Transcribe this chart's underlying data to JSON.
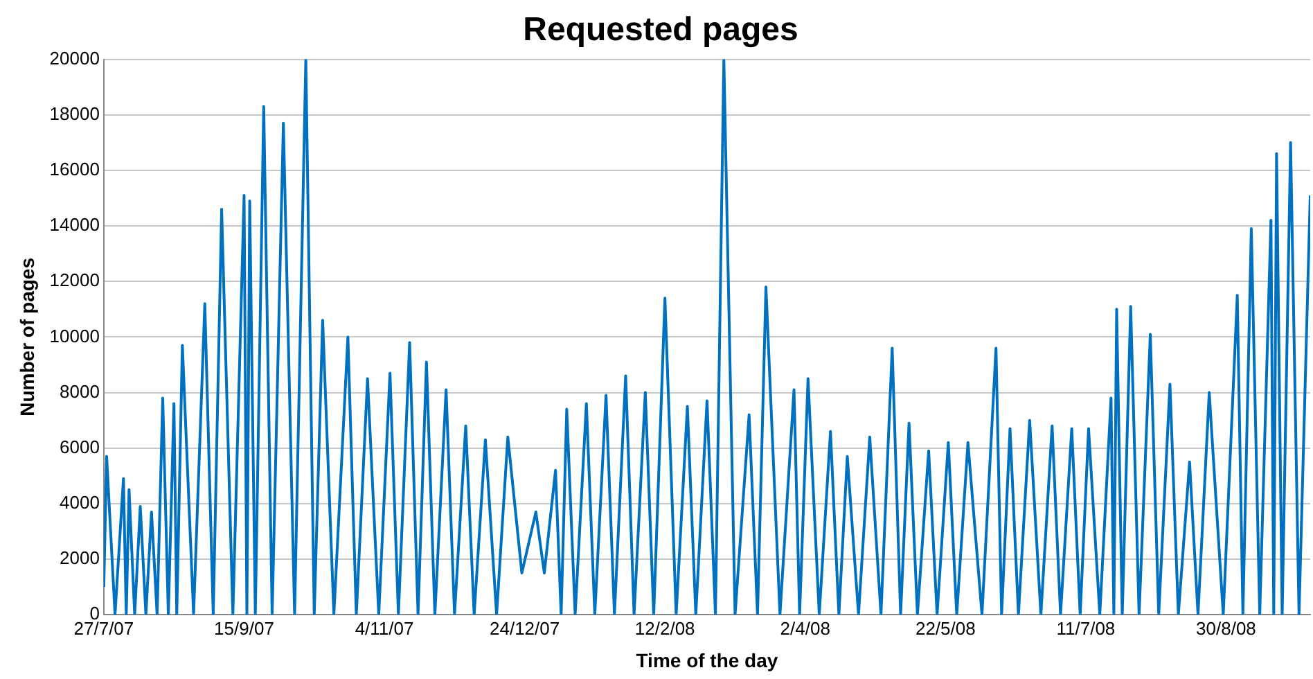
{
  "chart_data": {
    "type": "line",
    "title": "Requested pages",
    "xlabel": "Time of the day",
    "ylabel": "Number of pages",
    "color": "#0070c0",
    "marker": "none",
    "grid": "y",
    "ylim": [
      0,
      20000
    ],
    "yticks": [
      0,
      2000,
      4000,
      6000,
      8000,
      10000,
      12000,
      14000,
      16000,
      18000,
      20000
    ],
    "xlim": [
      "2007-07-27",
      "2008-09-29"
    ],
    "xticks": [
      {
        "value": "2007-07-27",
        "label": "27/7/07"
      },
      {
        "value": "2007-09-15",
        "label": "15/9/07"
      },
      {
        "value": "2007-11-04",
        "label": "4/11/07"
      },
      {
        "value": "2007-12-24",
        "label": "24/12/07"
      },
      {
        "value": "2008-02-12",
        "label": "12/2/08"
      },
      {
        "value": "2008-04-02",
        "label": "2/4/08"
      },
      {
        "value": "2008-05-22",
        "label": "22/5/08"
      },
      {
        "value": "2008-07-11",
        "label": "11/7/08"
      },
      {
        "value": "2008-08-30",
        "label": "30/8/08"
      }
    ],
    "x": [
      "2007-07-27",
      "2007-07-28",
      "2007-07-31",
      "2007-08-03",
      "2007-08-04",
      "2007-08-05",
      "2007-08-07",
      "2007-08-09",
      "2007-08-11",
      "2007-08-13",
      "2007-08-15",
      "2007-08-17",
      "2007-08-19",
      "2007-08-21",
      "2007-08-22",
      "2007-08-24",
      "2007-08-28",
      "2007-09-01",
      "2007-09-04",
      "2007-09-07",
      "2007-09-11",
      "2007-09-15",
      "2007-09-16",
      "2007-09-17",
      "2007-09-19",
      "2007-09-22",
      "2007-09-25",
      "2007-09-29",
      "2007-10-03",
      "2007-10-07",
      "2007-10-10",
      "2007-10-13",
      "2007-10-17",
      "2007-10-22",
      "2007-10-25",
      "2007-10-29",
      "2007-11-02",
      "2007-11-06",
      "2007-11-09",
      "2007-11-13",
      "2007-11-16",
      "2007-11-19",
      "2007-11-22",
      "2007-11-26",
      "2007-11-29",
      "2007-12-03",
      "2007-12-06",
      "2007-12-10",
      "2007-12-14",
      "2007-12-18",
      "2007-12-23",
      "2007-12-28",
      "2007-12-31",
      "2008-01-04",
      "2008-01-06",
      "2008-01-08",
      "2008-01-11",
      "2008-01-15",
      "2008-01-18",
      "2008-01-22",
      "2008-01-25",
      "2008-01-29",
      "2008-02-01",
      "2008-02-05",
      "2008-02-08",
      "2008-02-12",
      "2008-02-16",
      "2008-02-20",
      "2008-02-23",
      "2008-02-27",
      "2008-03-01",
      "2008-03-04",
      "2008-03-08",
      "2008-03-13",
      "2008-03-16",
      "2008-03-19",
      "2008-03-24",
      "2008-03-29",
      "2008-03-31",
      "2008-04-03",
      "2008-04-07",
      "2008-04-11",
      "2008-04-14",
      "2008-04-17",
      "2008-04-21",
      "2008-04-25",
      "2008-04-29",
      "2008-05-03",
      "2008-05-06",
      "2008-05-09",
      "2008-05-12",
      "2008-05-16",
      "2008-05-19",
      "2008-05-23",
      "2008-05-26",
      "2008-05-30",
      "2008-06-04",
      "2008-06-09",
      "2008-06-11",
      "2008-06-14",
      "2008-06-17",
      "2008-06-21",
      "2008-06-25",
      "2008-06-29",
      "2008-07-02",
      "2008-07-06",
      "2008-07-09",
      "2008-07-12",
      "2008-07-16",
      "2008-07-20",
      "2008-07-21",
      "2008-07-22",
      "2008-07-24",
      "2008-07-27",
      "2008-07-30",
      "2008-08-03",
      "2008-08-06",
      "2008-08-10",
      "2008-08-13",
      "2008-08-17",
      "2008-08-20",
      "2008-08-24",
      "2008-08-29",
      "2008-09-03",
      "2008-09-05",
      "2008-09-08",
      "2008-09-11",
      "2008-09-15",
      "2008-09-16",
      "2008-09-17",
      "2008-09-19",
      "2008-09-22",
      "2008-09-25",
      "2008-09-29"
    ],
    "values": [
      1000,
      5700,
      0,
      4900,
      0,
      4500,
      0,
      3900,
      0,
      3700,
      0,
      7800,
      0,
      7600,
      0,
      9700,
      0,
      11200,
      0,
      14600,
      0,
      15100,
      0,
      14900,
      0,
      18300,
      0,
      17700,
      0,
      20000,
      0,
      10600,
      0,
      10000,
      0,
      8500,
      0,
      8700,
      0,
      9800,
      0,
      9100,
      0,
      8100,
      0,
      6800,
      0,
      6300,
      0,
      6400,
      1500,
      3700,
      1500,
      5200,
      0,
      7400,
      0,
      7600,
      0,
      7900,
      0,
      8600,
      0,
      8000,
      0,
      11400,
      0,
      7500,
      0,
      7700,
      0,
      20000,
      0,
      7200,
      0,
      11800,
      0,
      8100,
      0,
      8500,
      0,
      6600,
      0,
      5700,
      0,
      6400,
      0,
      9600,
      0,
      6900,
      0,
      5900,
      0,
      6200,
      0,
      6200,
      0,
      9600,
      0,
      6700,
      0,
      7000,
      0,
      6800,
      0,
      6700,
      0,
      6700,
      0,
      7800,
      0,
      11000,
      0,
      11100,
      0,
      10100,
      0,
      8300,
      0,
      5500,
      0,
      8000,
      0,
      11500,
      0,
      13900,
      0,
      14200,
      0,
      16600,
      0,
      17000,
      0,
      15100
    ]
  }
}
